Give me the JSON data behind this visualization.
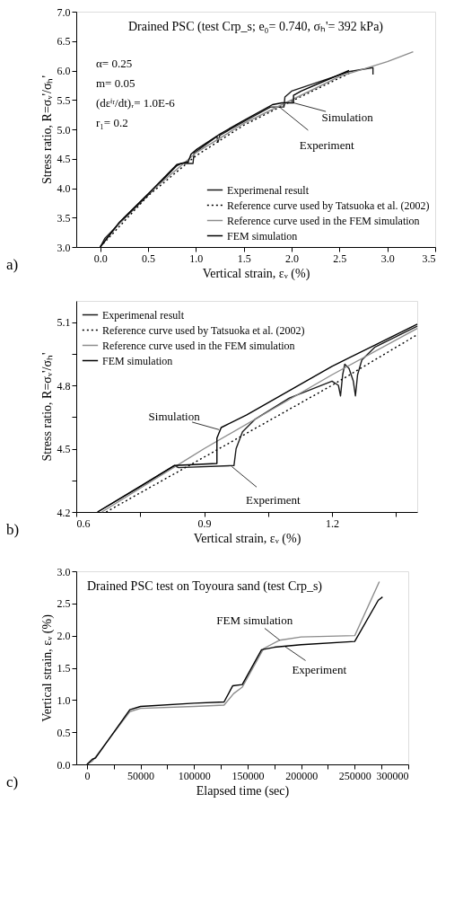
{
  "chart_data": [
    {
      "type": "line",
      "title": "Drained PSC (test Crp_s; e₀= 0.740, σₕ'= 392 kPa)",
      "xlabel": "Vertical strain, εᵥ (%)",
      "ylabel": "Stress ratio, R=σᵥ'/σₕ'",
      "xlim": [
        -0.25,
        3.5
      ],
      "xticks": [
        {
          "value": 0,
          "label": "0.0"
        },
        0.5,
        {
          "value": 1,
          "label": "1.0"
        },
        1.5,
        {
          "value": 2,
          "label": "2.0"
        },
        2.5,
        {
          "value": 3,
          "label": "3.0"
        },
        3.5
      ],
      "ylim": [
        3,
        7
      ],
      "yticks": [
        {
          "value": 3,
          "label": "3.0"
        },
        3.5,
        {
          "value": 4,
          "label": "4.0"
        },
        4.5,
        {
          "value": 5,
          "label": "5.0"
        },
        5.5,
        {
          "value": 6,
          "label": "6.0"
        },
        6.5,
        {
          "value": 7,
          "label": "7.0"
        }
      ],
      "grid": false,
      "legend": "bottom right",
      "marker": "none",
      "series": [
        {
          "name": "Experimenal result",
          "color": "#1a1a1a",
          "line_style": "solid",
          "x": [
            0,
            0.05,
            0.2,
            0.5,
            0.8,
            0.85,
            0.97,
            0.98,
            1.0,
            1.22,
            1.23,
            1.25,
            1.5,
            1.78,
            1.92,
            1.93,
            2.0,
            2.6,
            2.85,
            2.85
          ],
          "values": [
            3.0,
            3.15,
            3.4,
            3.88,
            4.38,
            4.42,
            4.42,
            4.6,
            4.62,
            4.88,
            4.78,
            4.9,
            5.13,
            5.38,
            5.38,
            5.55,
            5.65,
            5.98,
            6.05,
            5.93
          ]
        },
        {
          "name": "Reference curve used by Tatsuoka et al. (2002)",
          "color": "#000000",
          "line_style": "dotted",
          "x": [
            0,
            0.5,
            1.0,
            1.5,
            2.0,
            2.6
          ],
          "values": [
            3.0,
            3.87,
            4.55,
            5.07,
            5.48,
            5.95
          ]
        },
        {
          "name": "Reference curve used in the FEM simulation",
          "color": "#8c8c8c",
          "line_style": "solid",
          "x": [
            0,
            0.25,
            0.5,
            1.0,
            1.5,
            2.0,
            2.5,
            3.0,
            3.27
          ],
          "values": [
            3.0,
            3.5,
            3.9,
            4.6,
            5.1,
            5.5,
            5.9,
            6.15,
            6.32
          ]
        },
        {
          "name": "FEM simulation",
          "color": "#000000",
          "line_style": "solid",
          "x": [
            0,
            0.2,
            0.5,
            0.8,
            0.92,
            0.95,
            1.0,
            1.25,
            1.5,
            1.8,
            1.9,
            2.02,
            2.02,
            2.1,
            2.6
          ],
          "values": [
            3.0,
            3.42,
            3.9,
            4.4,
            4.45,
            4.58,
            4.65,
            4.92,
            5.15,
            5.42,
            5.45,
            5.45,
            5.58,
            5.65,
            6.0
          ]
        }
      ],
      "annotations": [
        "α= 0.25",
        "m= 0.05",
        "(dεⁱʳ/dt)ᵣ= 1.0E-6",
        "r₁= 0.2",
        {
          "text": "Simulation",
          "x": 2.02,
          "y": 5.45
        },
        {
          "text": "Experiment",
          "x": 1.88,
          "y": 5.37
        },
        "a)"
      ]
    },
    {
      "type": "line",
      "xlabel": "Vertical strain, εᵥ (%)",
      "ylabel": "Stress ratio, R=σᵥ'/σₕ'",
      "xlim": [
        0.6,
        1.4
      ],
      "xticks": [
        0.6,
        {
          "value": 0.75,
          "label": null
        },
        0.9,
        {
          "value": 1.05,
          "label": null
        },
        1.2,
        {
          "value": 1.35,
          "label": null
        }
      ],
      "ylim": [
        4.2,
        5.2
      ],
      "yticks": [
        4.2,
        {
          "value": 4.35,
          "label": null
        },
        4.5,
        {
          "value": 4.65,
          "label": null
        },
        4.8,
        {
          "value": 4.95,
          "label": null
        },
        5.1
      ],
      "grid": false,
      "legend": "top left",
      "marker": "none",
      "series": [
        {
          "name": "Experimenal result",
          "color": "#1a1a1a",
          "line_style": "solid",
          "x": [
            0.65,
            0.75,
            0.83,
            0.84,
            0.97,
            0.975,
            0.99,
            1.02,
            1.1,
            1.2,
            1.215,
            1.22,
            1.225,
            1.23,
            1.24,
            1.25,
            1.255,
            1.26,
            1.27,
            1.3,
            1.4
          ],
          "values": [
            4.2,
            4.32,
            4.42,
            4.41,
            4.42,
            4.5,
            4.58,
            4.64,
            4.74,
            4.82,
            4.8,
            4.75,
            4.85,
            4.9,
            4.88,
            4.82,
            4.75,
            4.85,
            4.92,
            4.98,
            5.08
          ]
        },
        {
          "name": "Reference curve used by Tatsuoka et al. (2002)",
          "color": "#000000",
          "line_style": "dotted",
          "x": [
            0.67,
            0.9,
            1.2,
            1.4
          ],
          "values": [
            4.2,
            4.46,
            4.8,
            5.04
          ]
        },
        {
          "name": "Reference curve used in the FEM simulation",
          "color": "#8c8c8c",
          "line_style": "solid",
          "x": [
            0.66,
            0.9,
            1.2,
            1.4
          ],
          "values": [
            4.2,
            4.5,
            4.85,
            5.07
          ]
        },
        {
          "name": "FEM simulation",
          "color": "#000000",
          "line_style": "solid",
          "x": [
            0.65,
            0.83,
            0.93,
            0.93,
            0.94,
            1.0,
            1.2,
            1.24,
            1.3,
            1.4
          ],
          "values": [
            4.2,
            4.42,
            4.43,
            4.55,
            4.6,
            4.66,
            4.89,
            4.93,
            4.99,
            5.09
          ]
        }
      ],
      "annotations": [
        {
          "text": "Simulation",
          "x": 0.935,
          "y": 4.59
        },
        {
          "text": "Experiment",
          "x": 0.965,
          "y": 4.415
        },
        "b)"
      ]
    },
    {
      "type": "line",
      "title": "Drained PSC test on Toyoura sand (test Crp_s)",
      "xlabel": "Elapsed time (sec)",
      "ylabel": "Vertical strain, εᵥ (%)",
      "xlim": [
        -10000,
        300000
      ],
      "xticks": [
        0,
        {
          "value": 25000,
          "label": null
        },
        50000,
        {
          "value": 75000,
          "label": null
        },
        100000,
        {
          "value": 125000,
          "label": null
        },
        150000,
        {
          "value": 175000,
          "label": null
        },
        200000,
        {
          "value": 225000,
          "label": null
        },
        250000,
        {
          "value": 275000,
          "label": null
        },
        300000
      ],
      "ylim": [
        0,
        3
      ],
      "yticks": [
        {
          "value": 0,
          "label": "0.0"
        },
        0.5,
        {
          "value": 1,
          "label": "1.0"
        },
        1.5,
        {
          "value": 2,
          "label": "2.0"
        },
        2.5,
        {
          "value": 3,
          "label": "3.0"
        }
      ],
      "grid": false,
      "marker": "none",
      "series": [
        {
          "color": "#8c8c8c",
          "line_style": "solid",
          "x": [
            0,
            5000,
            40000,
            50000,
            100000,
            128000,
            137000,
            145000,
            165000,
            180000,
            200000,
            250000,
            273000
          ],
          "values": [
            0,
            0.05,
            0.82,
            0.87,
            0.9,
            0.92,
            1.1,
            1.2,
            1.8,
            1.93,
            1.98,
            2.0,
            2.84
          ]
        },
        {
          "color": "#000000",
          "line_style": "solid",
          "x": [
            0,
            5000,
            8000,
            40000,
            50000,
            100000,
            128000,
            136000,
            145000,
            163000,
            175000,
            200000,
            250000,
            272000,
            276000
          ],
          "values": [
            0,
            0.08,
            0.1,
            0.85,
            0.9,
            0.95,
            0.97,
            1.22,
            1.24,
            1.78,
            1.82,
            1.86,
            1.91,
            2.55,
            2.6
          ]
        }
      ],
      "annotations": [
        {
          "text": "FEM simulation",
          "x": 180000,
          "y": 1.93
        },
        {
          "text": "Experiment",
          "x": 185000,
          "y": 1.83
        },
        "c)"
      ]
    }
  ]
}
